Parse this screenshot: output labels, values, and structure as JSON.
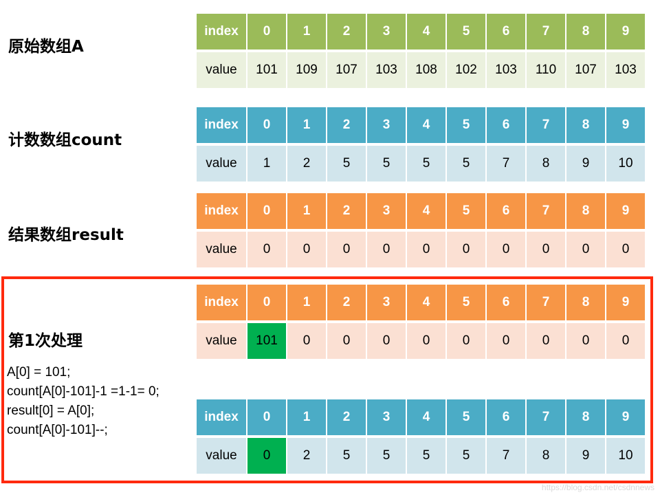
{
  "labels": {
    "original": "原始数组A",
    "count": "计数数组count",
    "result": "结果数组result",
    "step": "第1次处理"
  },
  "code_lines": [
    "A[0] = 101;",
    "count[A[0]-101]-1 =1-1= 0;",
    "result[0] = A[0];",
    "count[A[0]-101]--;"
  ],
  "index_header": "index",
  "value_header": "value",
  "indices": [
    "0",
    "1",
    "2",
    "3",
    "4",
    "5",
    "6",
    "7",
    "8",
    "9"
  ],
  "tables": {
    "original": [
      "101",
      "109",
      "107",
      "103",
      "108",
      "102",
      "103",
      "110",
      "107",
      "103"
    ],
    "count": [
      "1",
      "2",
      "5",
      "5",
      "5",
      "5",
      "7",
      "8",
      "9",
      "10"
    ],
    "result": [
      "0",
      "0",
      "0",
      "0",
      "0",
      "0",
      "0",
      "0",
      "0",
      "0"
    ],
    "step_result": [
      "101",
      "0",
      "0",
      "0",
      "0",
      "0",
      "0",
      "0",
      "0",
      "0"
    ],
    "step_count": [
      "0",
      "2",
      "5",
      "5",
      "5",
      "5",
      "7",
      "8",
      "9",
      "10"
    ]
  },
  "watermark": "https://blog.csdn.net/csdnnews",
  "colors": {
    "green_header": "#9bbb59",
    "blue_header": "#4bacc6",
    "orange_header": "#f79646",
    "highlight": "#00b050",
    "frame": "#ff2a0e"
  }
}
